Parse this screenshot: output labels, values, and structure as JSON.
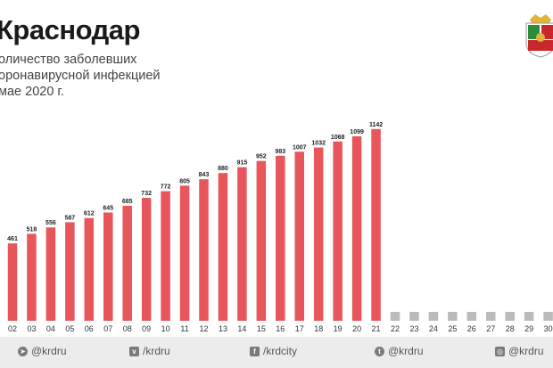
{
  "header": {
    "title": "Краснодар",
    "subtitle": "оличество заболевших\nоронавирусной инфекцией\nмае 2020 г."
  },
  "colors": {
    "bar": "#e8555a",
    "placeholder": "#bbbbbb",
    "coat_red": "#c8282d",
    "coat_green": "#2e8b3a",
    "coat_gold": "#e2b43a"
  },
  "chart_data": {
    "type": "bar",
    "categories": [
      "02",
      "03",
      "04",
      "05",
      "06",
      "07",
      "08",
      "09",
      "10",
      "11",
      "12",
      "13",
      "14",
      "15",
      "16",
      "17",
      "18",
      "19",
      "20",
      "21",
      "22",
      "23",
      "24",
      "25",
      "26",
      "27",
      "28",
      "29",
      "30"
    ],
    "values": [
      461,
      518,
      556,
      587,
      612,
      645,
      685,
      732,
      772,
      805,
      843,
      880,
      915,
      952,
      983,
      1007,
      1032,
      1068,
      1099,
      1142,
      null,
      null,
      null,
      null,
      null,
      null,
      null,
      null,
      null
    ],
    "title": "Краснодар",
    "xlabel": "",
    "ylabel": "",
    "grid": false,
    "legend": "none"
  },
  "footer": {
    "items": [
      {
        "icon": "telegram-icon",
        "label": "@krdru"
      },
      {
        "icon": "vk-icon",
        "label": "/krdru"
      },
      {
        "icon": "facebook-icon",
        "label": "/krdcity"
      },
      {
        "icon": "twitter-icon",
        "label": "@krdru"
      },
      {
        "icon": "instagram-icon",
        "label": "@krdru"
      }
    ]
  }
}
